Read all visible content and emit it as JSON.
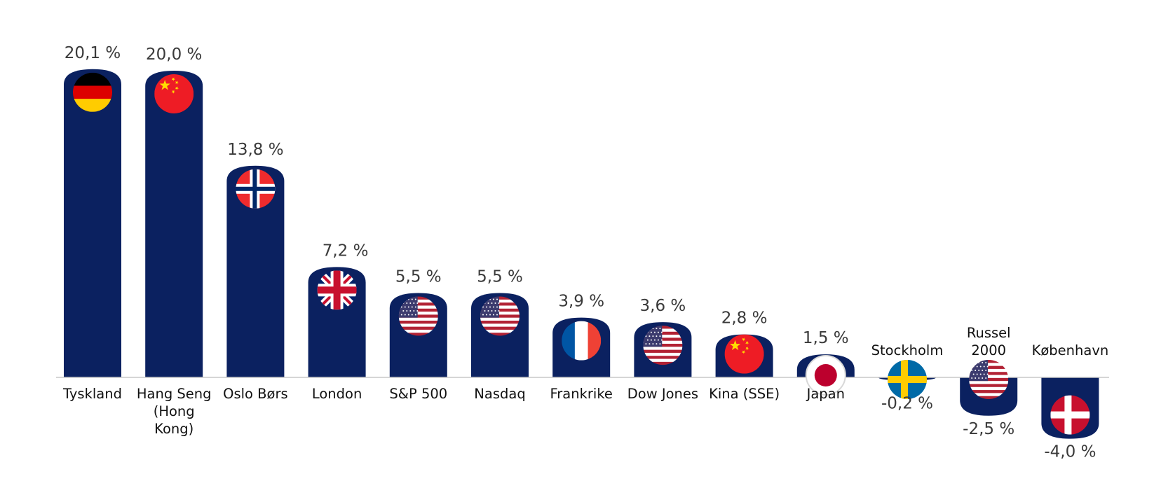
{
  "chart_data": {
    "type": "bar",
    "categories": [
      [
        "Tyskland"
      ],
      [
        "Hang Seng",
        "(Hong",
        "Kong)"
      ],
      [
        "Oslo Børs"
      ],
      [
        "London"
      ],
      [
        "S&P 500"
      ],
      [
        "Nasdaq"
      ],
      [
        "Frankrike"
      ],
      [
        "Dow Jones"
      ],
      [
        "Kina (SSE)"
      ],
      [
        "Japan"
      ],
      [
        "Stockholm"
      ],
      [
        "Russel",
        "2000"
      ],
      [
        "København"
      ]
    ],
    "values": [
      20.1,
      20.0,
      13.8,
      7.2,
      5.5,
      5.5,
      3.9,
      3.6,
      2.8,
      1.5,
      -0.2,
      -2.5,
      -4.0
    ],
    "value_labels": [
      "20,1 %",
      "20,0 %",
      "13,8 %",
      "7,2 %",
      "5,5 %",
      "5,5 %",
      "3,9 %",
      "3,6 %",
      "2,8 %",
      "1,5 %",
      "-0,2 %",
      "-2,5 %",
      "-4,0 %"
    ],
    "flag_icons": [
      "germany-flag-icon",
      "china-flag-icon",
      "norway-flag-icon",
      "uk-flag-icon",
      "usa-flag-icon",
      "usa-flag-icon",
      "france-flag-icon",
      "usa-flag-icon",
      "china-flag-icon",
      "japan-flag-icon",
      "sweden-flag-icon",
      "usa-flag-icon",
      "denmark-flag-icon"
    ],
    "title": "",
    "xlabel": "",
    "ylabel": "",
    "ylim": [
      -4.0,
      20.1
    ],
    "grid": false,
    "legend": "none",
    "bar_color": "#0b2160"
  }
}
